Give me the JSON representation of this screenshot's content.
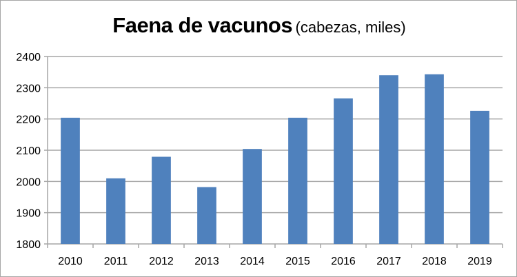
{
  "chart_data": {
    "type": "bar",
    "title": "Faena de vacunos",
    "subtitle": "(cabezas, miles)",
    "xlabel": "",
    "ylabel": "",
    "categories": [
      "2010",
      "2011",
      "2012",
      "2013",
      "2014",
      "2015",
      "2016",
      "2017",
      "2018",
      "2019"
    ],
    "values": [
      2204,
      2010,
      2079,
      1982,
      2104,
      2204,
      2266,
      2340,
      2343,
      2226
    ],
    "ylim": [
      1800,
      2400
    ],
    "yticks": [
      1800,
      1900,
      2000,
      2100,
      2200,
      2300,
      2400
    ],
    "grid": true,
    "legend": null,
    "bar_color": "#4f81bd",
    "grid_color": "#a6a6a6"
  }
}
